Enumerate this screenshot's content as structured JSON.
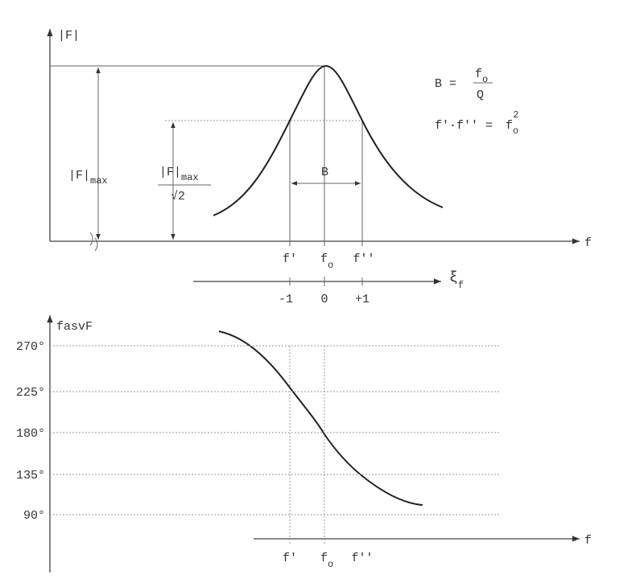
{
  "top": {
    "y_label": "|F|",
    "peak_label": {
      "base": "|F|",
      "sub": "max"
    },
    "half_label": {
      "num_base": "|F|",
      "num_sub": "max",
      "den": "√2"
    },
    "bandwidth_label": "B",
    "x_label": "f",
    "x_ticks": {
      "lower": "f'",
      "center_base": "f",
      "center_sub": "o",
      "upper": "f''"
    }
  },
  "formulas": {
    "bandwidth": {
      "lhs": "B =",
      "num_base": "f",
      "num_sub": "o",
      "den": "Q"
    },
    "product": {
      "lhs": "f'·f'' =",
      "base": "f",
      "sub": "o",
      "sup": "2"
    }
  },
  "xi_axis": {
    "label_base": "ξ",
    "label_sub": "f",
    "ticks": [
      "-1",
      "0",
      "+1"
    ]
  },
  "bottom": {
    "y_label": "fasvF",
    "y_ticks": [
      "270°",
      "225°",
      "180°",
      "135°",
      "90°"
    ],
    "x_label": "f",
    "x_ticks": {
      "lower": "f'",
      "center_base": "f",
      "center_sub": "o",
      "upper": "f''"
    }
  }
}
